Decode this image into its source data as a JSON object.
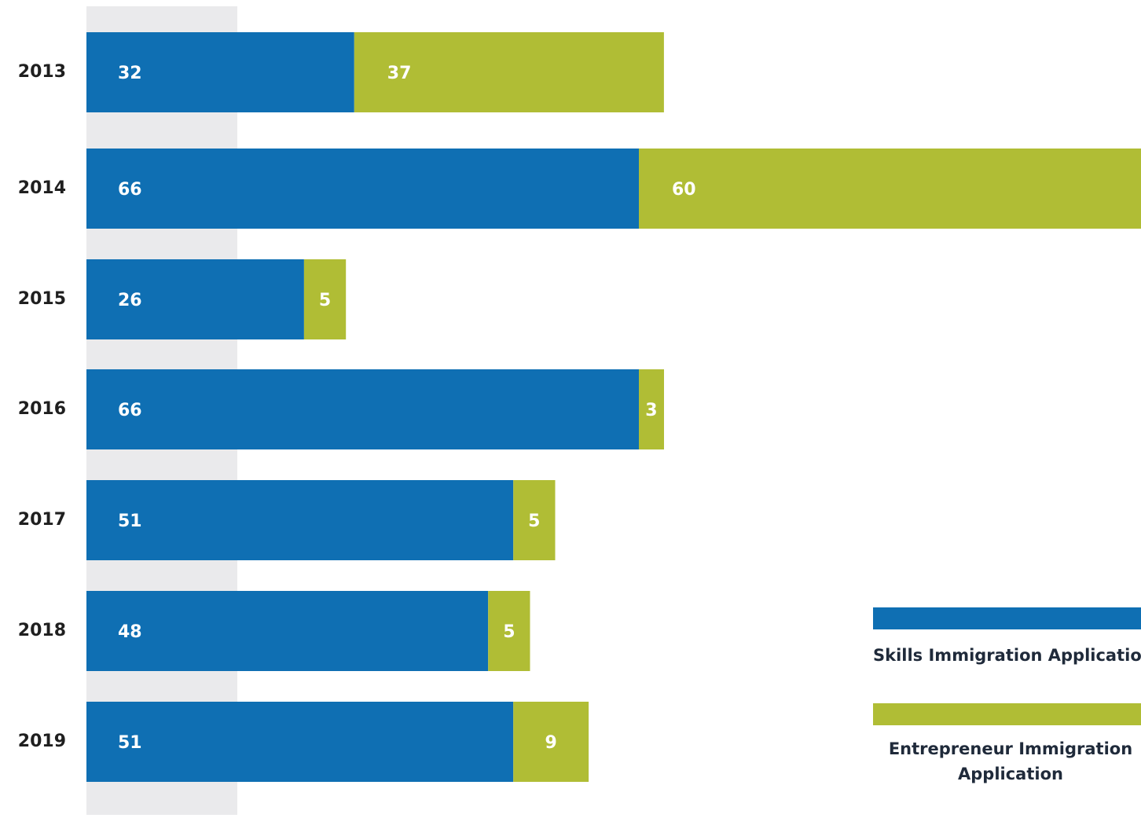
{
  "chart_data": {
    "type": "bar",
    "orientation": "horizontal",
    "stacked": true,
    "categories": [
      "2013",
      "2014",
      "2015",
      "2016",
      "2017",
      "2018",
      "2019"
    ],
    "series": [
      {
        "name": "Skills Immigration Application",
        "color": "#0f6fb3",
        "values": [
          32,
          66,
          26,
          66,
          51,
          48,
          51
        ]
      },
      {
        "name": "Entrepreneur Immigration Application",
        "color": "#b0bd35",
        "values": [
          37,
          60,
          5,
          3,
          5,
          5,
          9
        ]
      }
    ],
    "data_labels": true,
    "xlim": [
      0,
      126
    ],
    "legend_position": "bottom-right"
  },
  "colors": {
    "band": "#eaeaec",
    "label_text": "#ffffff",
    "category_text": "#1f1f1f"
  }
}
